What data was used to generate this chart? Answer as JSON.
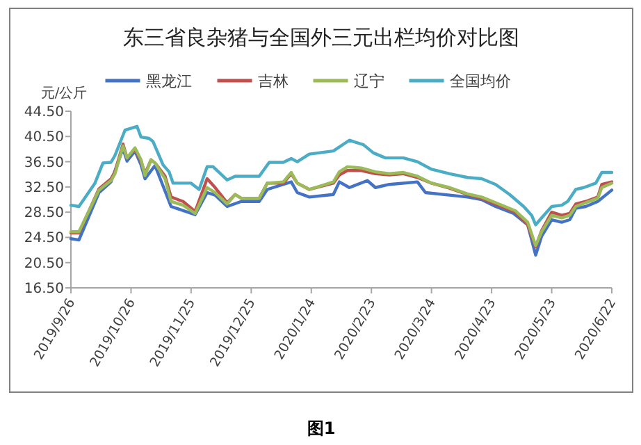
{
  "chart_data": {
    "type": "line",
    "title": "东三省良杂猪与全国外三元出栏均价对比图",
    "ylabel": "元/公斤",
    "annotations": [
      "图1"
    ],
    "legend": "top",
    "grid": false,
    "xlim": [
      "2019-09-26",
      "2020-06-22"
    ],
    "xticks": [
      {
        "value": "2019-09-26",
        "label": "2019/9/26"
      },
      {
        "value": "2019-10-26",
        "label": "2019/10/26"
      },
      {
        "value": "2019-11-25",
        "label": "2019/11/25"
      },
      {
        "value": "2019-12-25",
        "label": "2019/12/25"
      },
      {
        "value": "2020-01-24",
        "label": "2020/1/24"
      },
      {
        "value": "2020-02-23",
        "label": "2020/2/23"
      },
      {
        "value": "2020-03-24",
        "label": "2020/3/24"
      },
      {
        "value": "2020-04-23",
        "label": "2020/4/23"
      },
      {
        "value": "2020-05-23",
        "label": "2020/5/23"
      },
      {
        "value": "2020-06-22",
        "label": "2020/6/22"
      }
    ],
    "ylim": [
      16.5,
      44.5
    ],
    "yticks": [
      {
        "value": 16.5,
        "label": "16.50"
      },
      {
        "value": 20.5,
        "label": "20.50"
      },
      {
        "value": 24.5,
        "label": "24.50"
      },
      {
        "value": 28.5,
        "label": "28.50"
      },
      {
        "value": 32.5,
        "label": "32.50"
      },
      {
        "value": 36.5,
        "label": "36.50"
      },
      {
        "value": 40.5,
        "label": "40.50"
      },
      {
        "value": 44.5,
        "label": "44.50"
      }
    ],
    "series": [
      {
        "name": "黑龙江",
        "color": "#4472c4",
        "x": [
          "2019-09-26",
          "2019-09-30",
          "2019-10-10",
          "2019-10-16",
          "2019-10-22",
          "2019-10-24",
          "2019-10-28",
          "2019-10-31",
          "2019-11-02",
          "2019-11-07",
          "2019-11-15",
          "2019-11-27",
          "2019-12-03",
          "2019-12-07",
          "2019-12-13",
          "2019-12-20",
          "2019-12-29",
          "2020-01-02",
          "2020-01-10",
          "2020-01-14",
          "2020-01-17",
          "2020-01-23",
          "2020-02-04",
          "2020-02-07",
          "2020-02-12",
          "2020-02-21",
          "2020-02-25",
          "2020-03-03",
          "2020-03-17",
          "2020-03-21",
          "2020-04-02",
          "2020-04-11",
          "2020-04-18",
          "2020-04-25",
          "2020-05-04",
          "2020-05-11",
          "2020-05-15",
          "2020-05-18",
          "2020-05-23",
          "2020-05-28",
          "2020-06-01",
          "2020-06-04",
          "2020-06-09",
          "2020-06-15",
          "2020-06-22"
        ],
        "values": [
          24.3,
          24.1,
          31.6,
          33.3,
          38.6,
          36.6,
          38.2,
          36.0,
          33.8,
          35.9,
          29.4,
          28.1,
          31.6,
          31.2,
          29.4,
          30.2,
          30.2,
          32.1,
          32.9,
          33.3,
          31.6,
          30.9,
          31.3,
          33.3,
          32.4,
          33.5,
          32.4,
          32.9,
          33.3,
          31.6,
          31.2,
          30.9,
          30.5,
          29.4,
          28.3,
          26.5,
          21.7,
          24.7,
          27.3,
          26.9,
          27.3,
          29.1,
          29.4,
          30.2,
          32.0
        ]
      },
      {
        "name": "吉林",
        "color": "#c0504d",
        "x": [
          "2019-09-26",
          "2019-09-30",
          "2019-10-10",
          "2019-10-16",
          "2019-10-18",
          "2019-10-22",
          "2019-10-24",
          "2019-10-28",
          "2019-10-31",
          "2019-11-02",
          "2019-11-05",
          "2019-11-07",
          "2019-11-12",
          "2019-11-15",
          "2019-11-21",
          "2019-11-27",
          "2019-12-03",
          "2019-12-07",
          "2019-12-13",
          "2019-12-17",
          "2019-12-20",
          "2019-12-29",
          "2020-01-02",
          "2020-01-10",
          "2020-01-14",
          "2020-01-17",
          "2020-01-23",
          "2020-02-04",
          "2020-02-07",
          "2020-02-11",
          "2020-02-18",
          "2020-02-25",
          "2020-03-03",
          "2020-03-10",
          "2020-03-17",
          "2020-03-24",
          "2020-04-02",
          "2020-04-11",
          "2020-04-18",
          "2020-04-25",
          "2020-05-05",
          "2020-05-11",
          "2020-05-15",
          "2020-05-18",
          "2020-05-23",
          "2020-05-28",
          "2020-06-01",
          "2020-06-04",
          "2020-06-09",
          "2020-06-15",
          "2020-06-17",
          "2020-06-22"
        ],
        "values": [
          25.2,
          25.2,
          32.2,
          33.8,
          34.9,
          39.3,
          37.1,
          38.5,
          36.6,
          34.6,
          36.8,
          36.3,
          34.2,
          30.9,
          30.2,
          28.6,
          33.8,
          32.4,
          30.0,
          31.3,
          30.7,
          30.7,
          33.1,
          33.1,
          34.6,
          33.1,
          32.1,
          33.1,
          34.4,
          35.1,
          35.1,
          34.6,
          34.4,
          34.6,
          34.0,
          33.1,
          32.3,
          31.3,
          30.7,
          29.8,
          28.5,
          26.5,
          23.0,
          25.6,
          28.5,
          28.0,
          28.3,
          29.8,
          30.2,
          30.9,
          32.9,
          33.3
        ]
      },
      {
        "name": "辽宁",
        "color": "#9bbb59",
        "x": [
          "2019-09-26",
          "2019-09-30",
          "2019-10-10",
          "2019-10-16",
          "2019-10-18",
          "2019-10-22",
          "2019-10-24",
          "2019-10-28",
          "2019-10-31",
          "2019-11-02",
          "2019-11-05",
          "2019-11-07",
          "2019-11-12",
          "2019-11-15",
          "2019-11-21",
          "2019-11-27",
          "2019-12-03",
          "2019-12-07",
          "2019-12-13",
          "2019-12-17",
          "2019-12-20",
          "2019-12-29",
          "2020-01-02",
          "2020-01-10",
          "2020-01-14",
          "2020-01-17",
          "2020-01-23",
          "2020-02-04",
          "2020-02-07",
          "2020-02-11",
          "2020-02-18",
          "2020-02-25",
          "2020-03-03",
          "2020-03-10",
          "2020-03-17",
          "2020-03-24",
          "2020-04-02",
          "2020-04-11",
          "2020-04-18",
          "2020-04-25",
          "2020-05-05",
          "2020-05-11",
          "2020-05-15",
          "2020-05-18",
          "2020-05-23",
          "2020-05-28",
          "2020-06-01",
          "2020-06-04",
          "2020-06-09",
          "2020-06-15",
          "2020-06-17",
          "2020-06-22"
        ],
        "values": [
          25.4,
          25.4,
          32.0,
          33.5,
          34.6,
          39.0,
          37.1,
          38.7,
          36.8,
          34.3,
          36.8,
          36.3,
          33.8,
          30.2,
          29.6,
          28.3,
          32.4,
          31.6,
          29.8,
          31.3,
          30.7,
          30.7,
          33.1,
          33.3,
          34.8,
          33.1,
          32.1,
          33.3,
          34.9,
          35.7,
          35.5,
          34.9,
          34.6,
          34.8,
          34.2,
          33.1,
          32.4,
          31.4,
          30.9,
          30.0,
          28.7,
          26.9,
          23.2,
          25.4,
          28.0,
          27.6,
          28.0,
          29.4,
          30.0,
          30.7,
          32.4,
          33.1
        ]
      },
      {
        "name": "全国均价",
        "color": "#4bacc6",
        "x": [
          "2019-09-26",
          "2019-09-30",
          "2019-10-08",
          "2019-10-12",
          "2019-10-16",
          "2019-10-18",
          "2019-10-23",
          "2019-10-27",
          "2019-10-29",
          "2019-10-31",
          "2019-11-04",
          "2019-11-06",
          "2019-11-11",
          "2019-11-14",
          "2019-11-16",
          "2019-11-25",
          "2019-11-29",
          "2019-12-03",
          "2019-12-06",
          "2019-12-13",
          "2019-12-17",
          "2019-12-29",
          "2020-01-03",
          "2020-01-10",
          "2020-01-14",
          "2020-01-17",
          "2020-01-23",
          "2020-02-04",
          "2020-02-12",
          "2020-02-19",
          "2020-02-24",
          "2020-03-01",
          "2020-03-10",
          "2020-03-17",
          "2020-03-24",
          "2020-04-02",
          "2020-04-11",
          "2020-04-18",
          "2020-04-25",
          "2020-05-02",
          "2020-05-09",
          "2020-05-13",
          "2020-05-15",
          "2020-05-18",
          "2020-05-23",
          "2020-05-28",
          "2020-05-31",
          "2020-06-04",
          "2020-06-08",
          "2020-06-14",
          "2020-06-17",
          "2020-06-22"
        ],
        "values": [
          29.6,
          29.4,
          33.1,
          36.3,
          36.4,
          37.5,
          41.5,
          41.9,
          42.1,
          40.4,
          40.2,
          39.7,
          36.0,
          34.9,
          33.1,
          33.1,
          32.1,
          35.7,
          35.7,
          33.6,
          34.2,
          34.2,
          36.4,
          36.4,
          37.0,
          36.5,
          37.7,
          38.2,
          39.9,
          39.2,
          37.9,
          37.1,
          37.1,
          36.5,
          35.3,
          34.6,
          34.0,
          33.8,
          32.9,
          31.3,
          29.4,
          28.0,
          26.5,
          27.6,
          29.4,
          29.6,
          30.2,
          32.1,
          32.4,
          33.1,
          34.8,
          34.8
        ]
      }
    ]
  }
}
